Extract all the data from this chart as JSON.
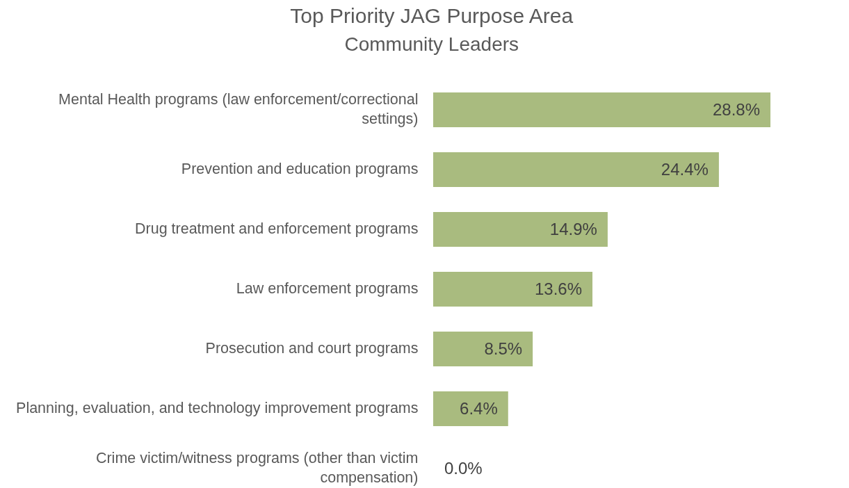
{
  "chart_data": {
    "type": "bar",
    "orientation": "horizontal",
    "title": "Top Priority JAG Purpose Area",
    "subtitle": "Community Leaders",
    "categories": [
      "Mental Health programs (law enforcement/correctional settings)",
      "Prevention and education programs",
      "Drug treatment and enforcement programs",
      "Law enforcement programs",
      "Prosecution and court programs",
      "Planning, evaluation, and technology improvement programs",
      "Crime victim/witness programs (other than victim compensation)"
    ],
    "values": [
      28.8,
      24.4,
      14.9,
      13.6,
      8.5,
      6.4,
      0.0
    ],
    "value_labels": [
      "28.8%",
      "24.4%",
      "14.9%",
      "13.6%",
      "8.5%",
      "6.4%",
      "0.0%"
    ],
    "color": "#a9bb7f"
  }
}
